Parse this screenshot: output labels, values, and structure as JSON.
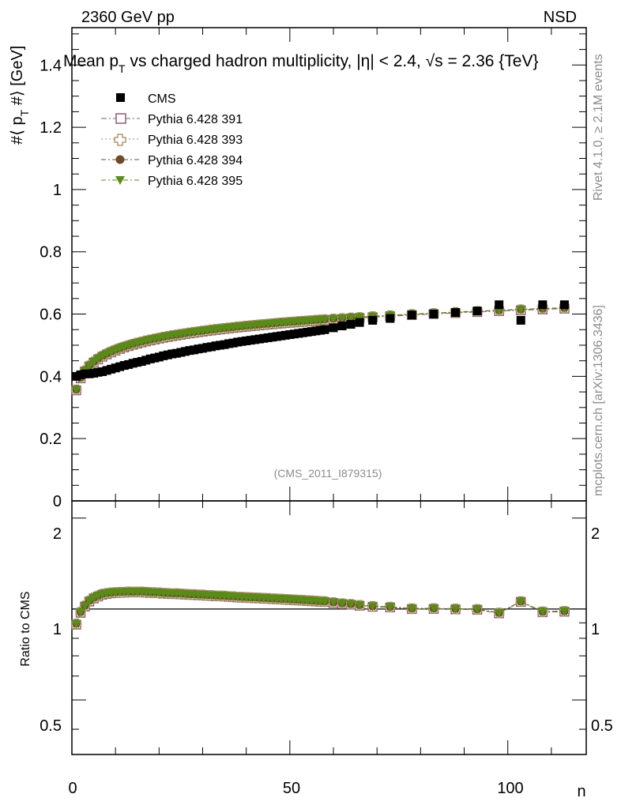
{
  "header": {
    "energy_label": "2360 GeV pp",
    "process_label": "NSD"
  },
  "side_text": {
    "rivet": "Rivet 4.1.0, ≥ 2.1M events",
    "mcplots": "mcplots.cern.ch [arXiv:1306.3436]"
  },
  "chart_data": [
    {
      "type": "scatter",
      "panel": "main",
      "title": "Mean p_T vs charged hadron multiplicity, |η| < 2.4, √s = 2.36 {TeV}",
      "title_parts": {
        "a": "Mean p",
        "sub": "T",
        "b": " vs charged hadron multiplicity, ",
        "c": "η| < 2.4, ",
        "d": "√s = 2.36 {TeV}"
      },
      "ylabel_parts": {
        "a": "#⟨ p",
        "sub": "T",
        "b": " #⟩ [GeV]"
      },
      "analysis_id": "(CMS_2011_I879315)",
      "xlim": [
        0,
        118
      ],
      "ylim": [
        0,
        1.52
      ],
      "y_ticks": [
        "0",
        "0.2",
        "0.4",
        "0.6",
        "0.8",
        "1",
        "1.2",
        "1.4"
      ],
      "legend_position": "top-left",
      "series": [
        {
          "name": "CMS",
          "style": "data",
          "color": "#000000",
          "x": [
            1,
            2,
            3,
            4,
            5,
            6,
            7,
            8,
            9,
            10,
            11,
            12,
            13,
            14,
            15,
            16,
            17,
            18,
            19,
            20,
            21,
            22,
            23,
            24,
            25,
            26,
            27,
            28,
            29,
            30,
            31,
            32,
            33,
            34,
            35,
            36,
            37,
            38,
            39,
            40,
            41,
            42,
            43,
            44,
            45,
            46,
            47,
            48,
            49,
            50,
            51,
            52,
            53,
            54,
            55,
            56,
            57,
            58,
            60,
            62,
            64,
            66,
            69,
            73,
            78,
            83,
            88,
            93,
            98,
            103,
            108,
            113
          ],
          "y": [
            0.4,
            0.405,
            0.408,
            0.408,
            0.41,
            0.413,
            0.415,
            0.419,
            0.423,
            0.427,
            0.431,
            0.435,
            0.438,
            0.442,
            0.445,
            0.448,
            0.452,
            0.456,
            0.459,
            0.462,
            0.466,
            0.469,
            0.472,
            0.474,
            0.477,
            0.48,
            0.483,
            0.485,
            0.488,
            0.49,
            0.493,
            0.495,
            0.498,
            0.5,
            0.502,
            0.505,
            0.507,
            0.51,
            0.512,
            0.514,
            0.516,
            0.518,
            0.52,
            0.522,
            0.524,
            0.526,
            0.528,
            0.53,
            0.532,
            0.534,
            0.536,
            0.538,
            0.54,
            0.542,
            0.544,
            0.546,
            0.548,
            0.55,
            0.556,
            0.562,
            0.567,
            0.573,
            0.58,
            0.586,
            0.597,
            0.6,
            0.605,
            0.61,
            0.63,
            0.58,
            0.63,
            0.63
          ]
        },
        {
          "name": "Pythia 6.428 391",
          "style": "open-square",
          "color": "#8e5a7a"
        },
        {
          "name": "Pythia 6.428 393",
          "style": "open-cross",
          "color": "#a08a5a"
        },
        {
          "name": "Pythia 6.428 394",
          "style": "circle",
          "color": "#6e4a2a"
        },
        {
          "name": "Pythia 6.428 395",
          "style": "triangle-down",
          "color": "#5a8a1a"
        }
      ]
    },
    {
      "type": "line",
      "panel": "ratio",
      "ylabel": "Ratio to CMS",
      "xlabel": "n",
      "xlim": [
        0,
        118
      ],
      "ylim": [
        0.33,
        2.28
      ],
      "y_ticks": [
        "0.5",
        "1",
        "2"
      ],
      "x_ticks": [
        "0",
        "50",
        "100"
      ],
      "reference_line": 1
    }
  ]
}
